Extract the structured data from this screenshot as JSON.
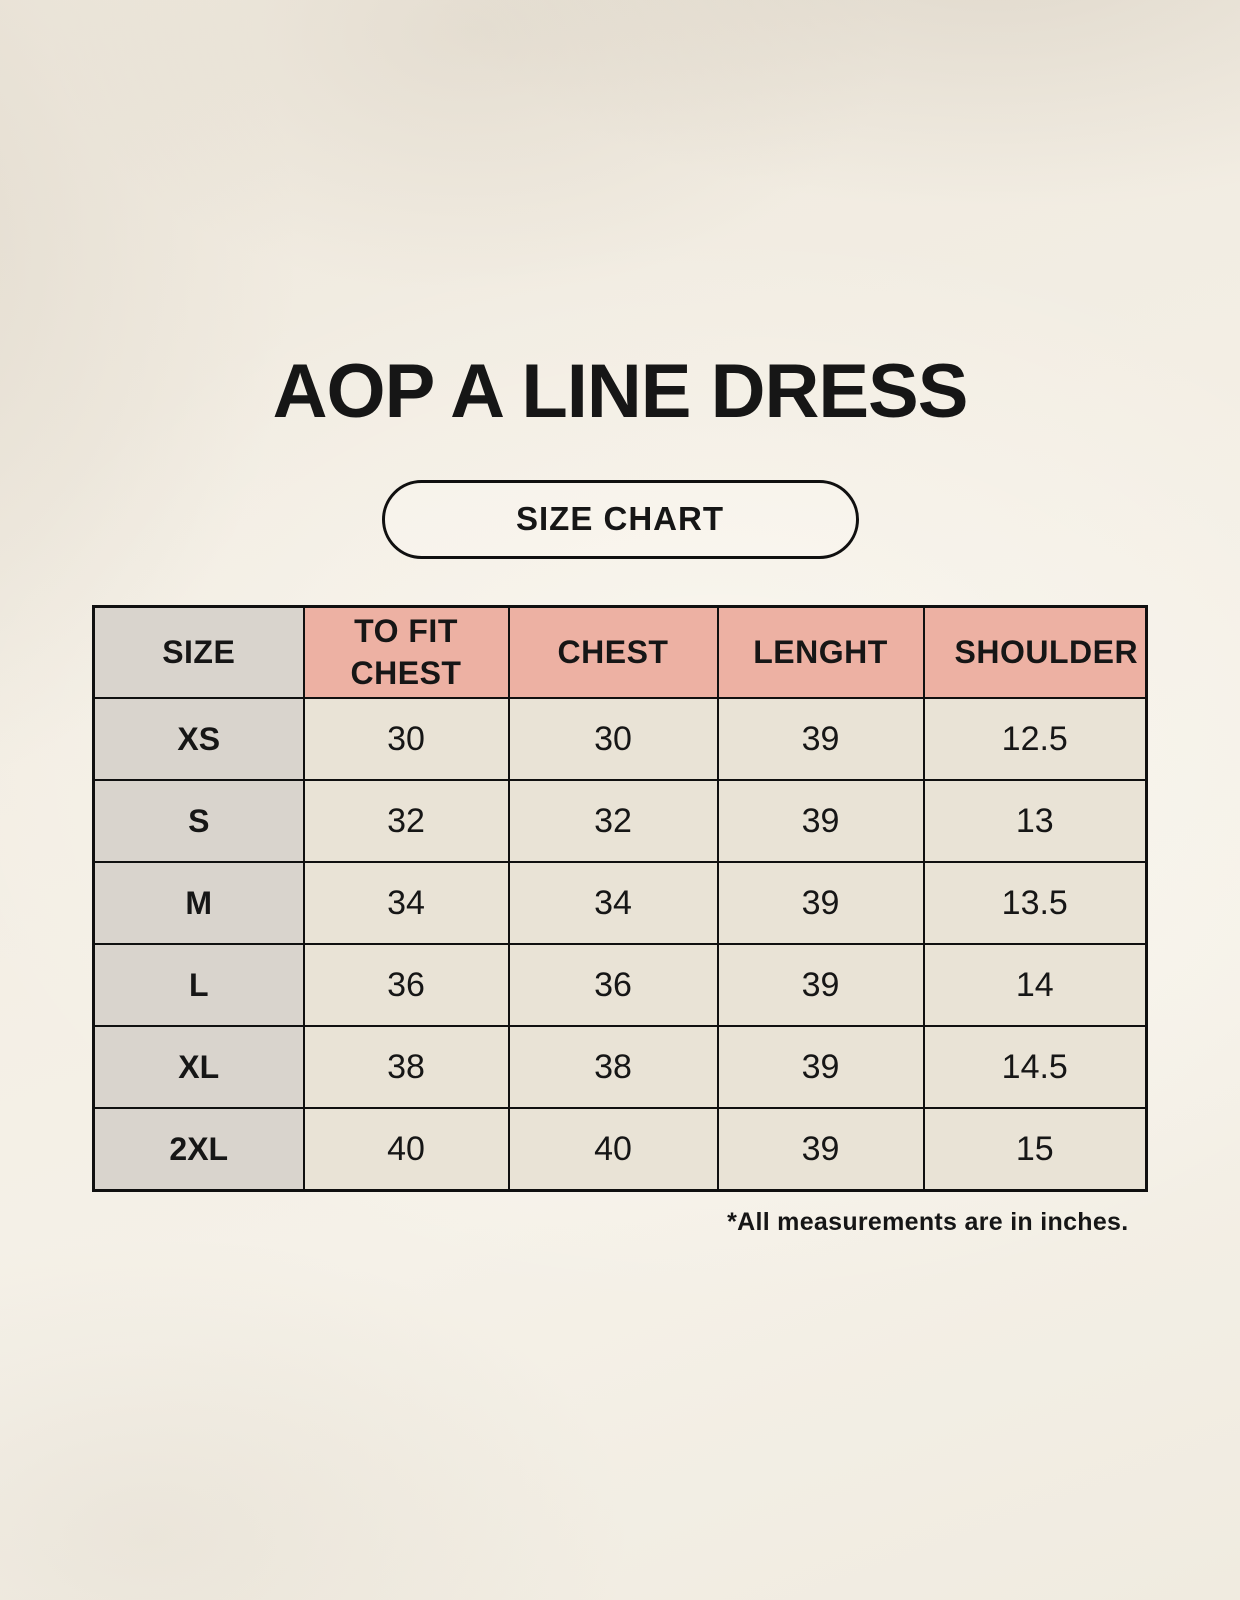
{
  "page": {
    "title": "AOP A LINE DRESS",
    "badge": "SIZE CHART",
    "note": "*All measurements are in inches."
  },
  "colors": {
    "background": "#f2ede3",
    "header_pink": "#edb1a3",
    "size_col_gray": "#d9d4cd",
    "cell_cream": "#e9e3d6",
    "border": "#101010",
    "text": "#161616"
  },
  "chart_data": {
    "type": "table",
    "title": "AOP A LINE DRESS",
    "badge": "SIZE CHART",
    "columns": [
      "SIZE",
      "TO FIT CHEST",
      "CHEST",
      "LENGHT",
      "SHOULDER"
    ],
    "rows": [
      {
        "size": "XS",
        "values": [
          "30",
          "30",
          "39",
          "12.5"
        ]
      },
      {
        "size": "S",
        "values": [
          "32",
          "32",
          "39",
          "13"
        ]
      },
      {
        "size": "M",
        "values": [
          "34",
          "34",
          "39",
          "13.5"
        ]
      },
      {
        "size": "L",
        "values": [
          "36",
          "36",
          "39",
          "14"
        ]
      },
      {
        "size": "XL",
        "values": [
          "38",
          "38",
          "39",
          "14.5"
        ]
      },
      {
        "size": "2XL",
        "values": [
          "40",
          "40",
          "39",
          "15"
        ]
      }
    ],
    "units_note": "*All measurements are in inches."
  }
}
